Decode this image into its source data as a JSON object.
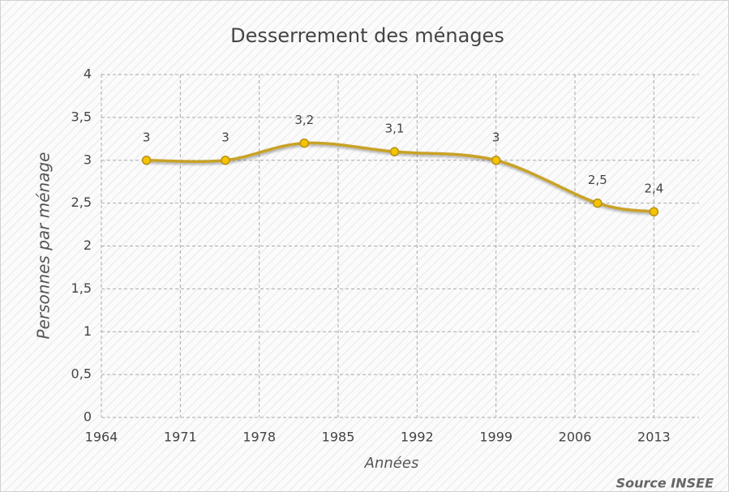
{
  "chart_data": {
    "type": "line",
    "title": "Desserrement des ménages",
    "xlabel": "Années",
    "ylabel": "Personnes par ménage",
    "source": "Source INSEE",
    "x": [
      1968,
      1975,
      1982,
      1990,
      1999,
      2008,
      2013
    ],
    "series": [
      {
        "name": "Personnes par ménage",
        "color": "#c9a227",
        "values": [
          3,
          3,
          3.2,
          3.1,
          3,
          2.5,
          2.4
        ],
        "value_labels": [
          "3",
          "3",
          "3,2",
          "3,1",
          "3",
          "2,5",
          "2,4"
        ]
      }
    ],
    "xlim": [
      1964,
      2017
    ],
    "xticks": [
      1964,
      1971,
      1978,
      1985,
      1992,
      1999,
      2006,
      2013
    ],
    "ylim": [
      0,
      4
    ],
    "yticks": [
      0,
      {
        "value": 0.5,
        "label": "0,5"
      },
      1,
      {
        "value": 1.5,
        "label": "1,5"
      },
      2,
      {
        "value": 2.5,
        "label": "2,5"
      },
      3,
      {
        "value": 3.5,
        "label": "3,5"
      },
      4
    ],
    "grid": true
  }
}
